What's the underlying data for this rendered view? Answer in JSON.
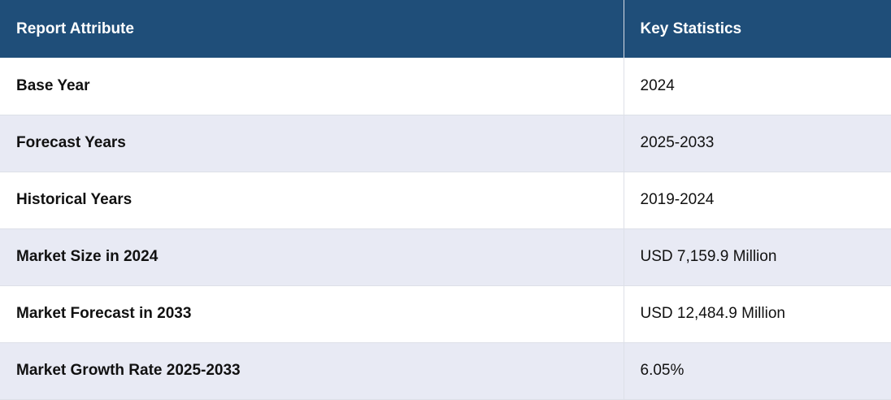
{
  "table": {
    "headers": {
      "attribute": "Report Attribute",
      "statistics": "Key Statistics"
    },
    "rows": [
      {
        "attribute": "Base Year",
        "value": "2024"
      },
      {
        "attribute": "Forecast Years",
        "value": "2025-2033"
      },
      {
        "attribute": "Historical Years",
        "value": "2019-2024"
      },
      {
        "attribute": "Market Size in 2024",
        "value": "USD 7,159.9 Million"
      },
      {
        "attribute": "Market Forecast in 2033",
        "value": "USD 12,484.9 Million"
      },
      {
        "attribute": "Market Growth Rate 2025-2033",
        "value": "6.05%"
      }
    ]
  },
  "colors": {
    "header_background": "#1f4e79",
    "header_text": "#ffffff",
    "shaded_row": "#e8eaf4",
    "light_row": "#ffffff"
  }
}
